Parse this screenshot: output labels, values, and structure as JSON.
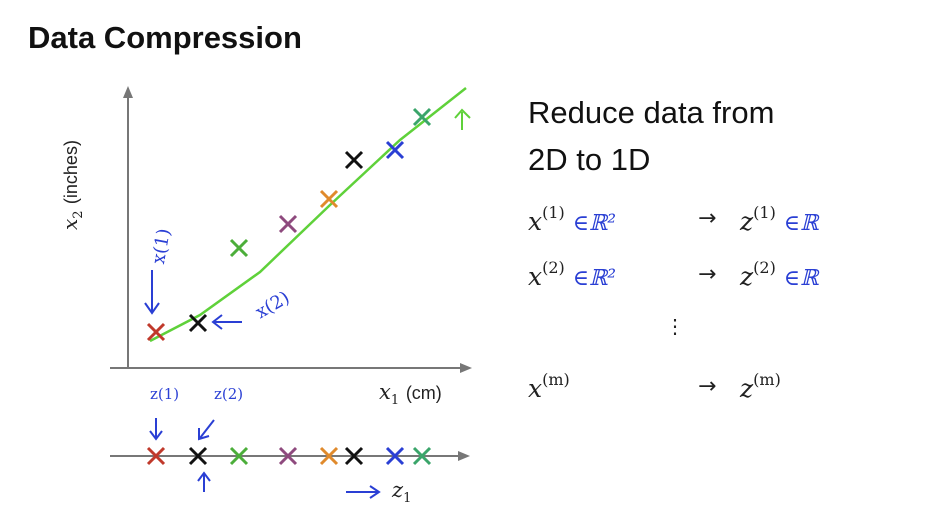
{
  "title": "Data Compression",
  "heading_line1": "Reduce data from",
  "heading_line2": "2D to 1D",
  "plot": {
    "y_axis_label": "x",
    "y_axis_sub": "2",
    "y_axis_unit": "(inches)",
    "x_axis_label": "x",
    "x_axis_sub": "1",
    "x_axis_unit": "(cm)"
  },
  "annotations": {
    "x1_note": "x(1)",
    "x2_note": "x(2)",
    "z1_note": "z(1)",
    "z2_note": "z(2)",
    "z1_axis_label": "z",
    "z1_axis_sub": "1"
  },
  "mappings": [
    {
      "x": "x",
      "x_sup": "(1)",
      "x_space": "∈ℝ²",
      "z": "z",
      "z_sup": "(1)",
      "z_space": "∈ℝ"
    },
    {
      "x": "x",
      "x_sup": "(2)",
      "x_space": "∈ℝ²",
      "z": "z",
      "z_sup": "(2)",
      "z_space": "∈ℝ"
    },
    {
      "x": "x",
      "x_sup": "(m)",
      "x_space": "",
      "z": "z",
      "z_sup": "(m)",
      "z_space": ""
    }
  ],
  "arrow_symbol": "→",
  "ellipsis": "⋮",
  "colors": {
    "line": "#5fd13a",
    "red": "#c0392b",
    "black": "#111111",
    "green": "#4cae3a",
    "purple": "#8e4a7e",
    "orange": "#e08a2c",
    "blue": "#2a3fd4",
    "teal": "#3aa56a",
    "pen": "#2a3fd4"
  }
}
